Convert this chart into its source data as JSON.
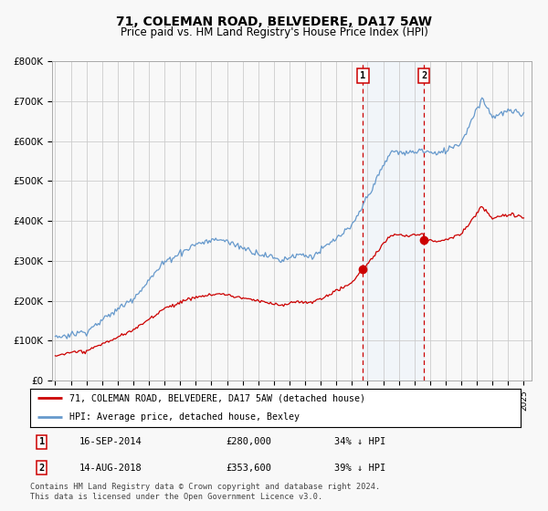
{
  "title": "71, COLEMAN ROAD, BELVEDERE, DA17 5AW",
  "subtitle": "Price paid vs. HM Land Registry's House Price Index (HPI)",
  "title_fontsize": 10,
  "subtitle_fontsize": 8.5,
  "bg_color": "#f8f8f8",
  "grid_color": "#cccccc",
  "plot_bg": "#f8f8f8",
  "marker1_year": 2014.71,
  "marker2_year": 2018.62,
  "marker1_label": "1",
  "marker2_label": "2",
  "marker1_price": 280000,
  "marker2_price": 353600,
  "legend_line1": "71, COLEMAN ROAD, BELVEDERE, DA17 5AW (detached house)",
  "legend_line2": "HPI: Average price, detached house, Bexley",
  "annot1": "16-SEP-2014",
  "annot1_price": "£280,000",
  "annot1_hpi": "34% ↓ HPI",
  "annot2": "14-AUG-2018",
  "annot2_price": "£353,600",
  "annot2_hpi": "39% ↓ HPI",
  "footer": "Contains HM Land Registry data © Crown copyright and database right 2024.\nThis data is licensed under the Open Government Licence v3.0.",
  "red_color": "#cc0000",
  "blue_color": "#6699cc",
  "shade_color": "#ddeeff",
  "ylim_min": 0,
  "ylim_max": 800000,
  "xmin": 1994.8,
  "xmax": 2025.5
}
